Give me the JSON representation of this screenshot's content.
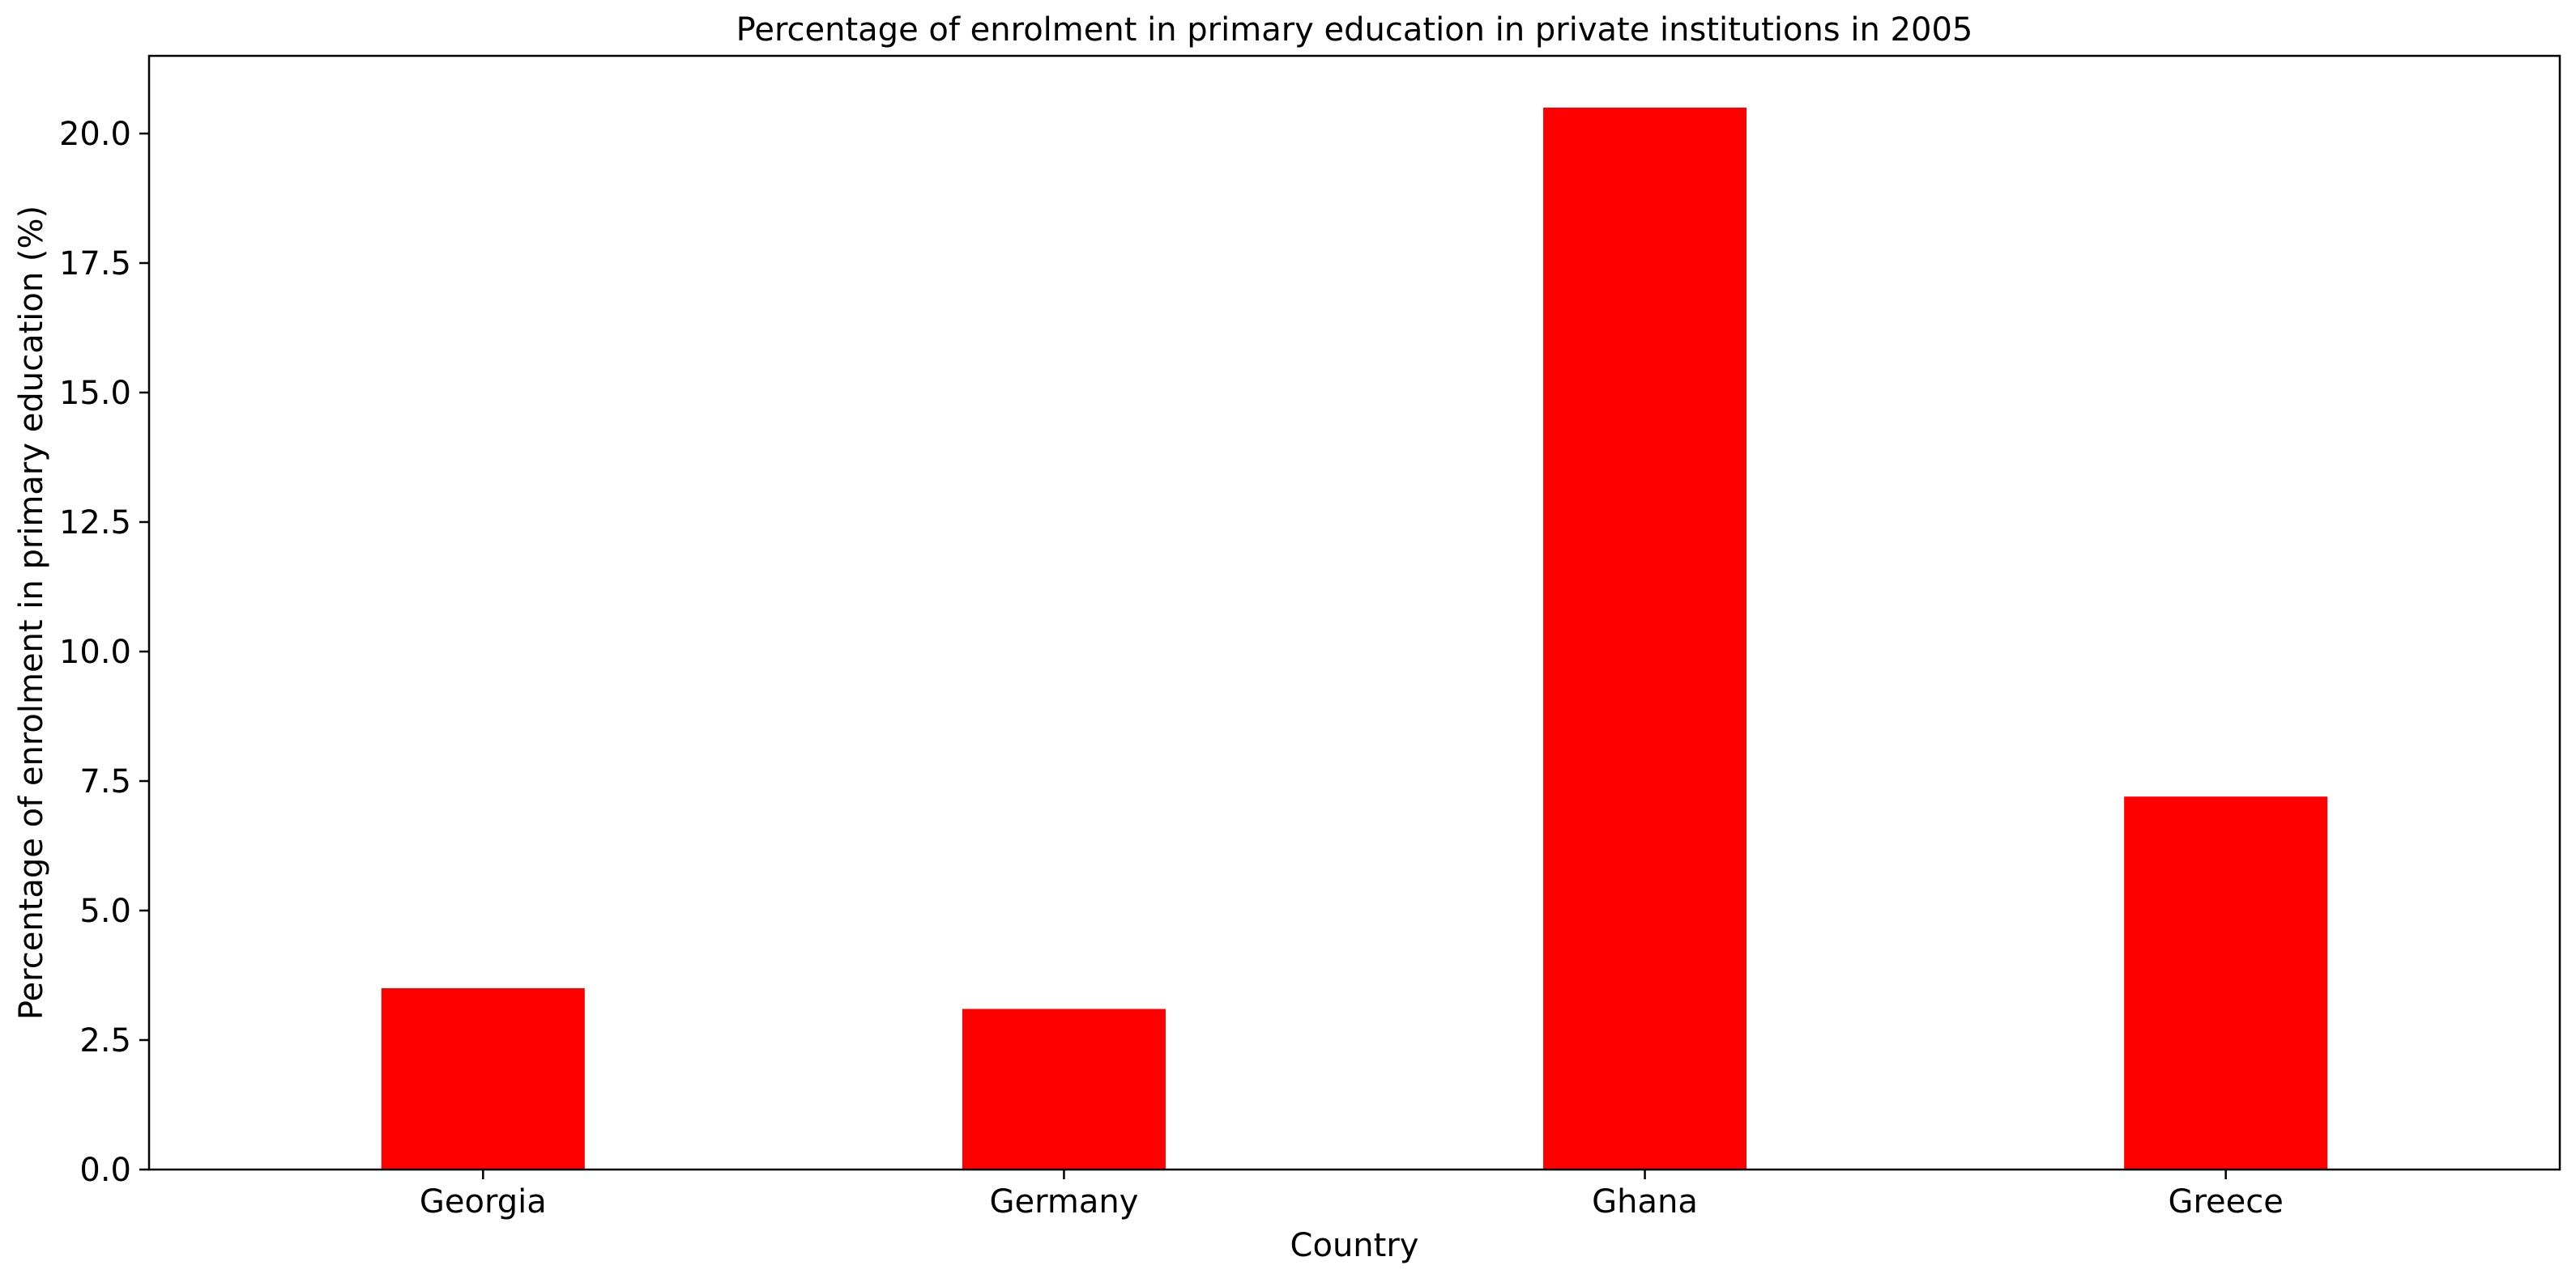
{
  "chart_data": {
    "type": "bar",
    "title": "Percentage of enrolment in primary education in private institutions in 2005",
    "xlabel": "Country",
    "ylabel": "Percentage of enrolment in primary education (%)",
    "categories": [
      "Georgia",
      "Germany",
      "Ghana",
      "Greece"
    ],
    "values": [
      3.5,
      3.1,
      20.5,
      7.2
    ],
    "ylim": [
      0,
      21.5
    ],
    "yticks": [
      "0.0",
      "2.5",
      "5.0",
      "7.5",
      "10.0",
      "12.5",
      "15.0",
      "17.5",
      "20.0"
    ],
    "bar_color": "#ff0000",
    "grid": false,
    "legend": "none"
  }
}
